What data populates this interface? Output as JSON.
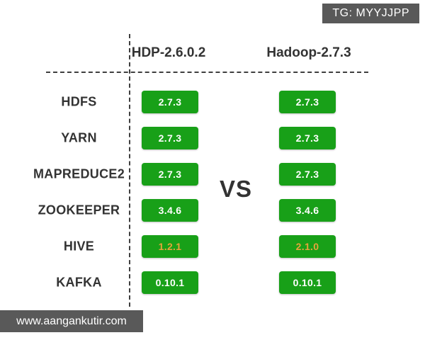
{
  "watermarks": {
    "tg_badge": "TG: MYYJJPP",
    "site": "www.aangankutir.com"
  },
  "header": {
    "left_column": "HDP-2.6.0.2",
    "right_column": "Hadoop-2.7.3",
    "vs": "VS"
  },
  "comparison": {
    "rows": [
      {
        "component": "HDFS",
        "hdp": "2.7.3",
        "hadoop": "2.7.3",
        "highlight": false
      },
      {
        "component": "YARN",
        "hdp": "2.7.3",
        "hadoop": "2.7.3",
        "highlight": false
      },
      {
        "component": "MAPREDUCE2",
        "hdp": "2.7.3",
        "hadoop": "2.7.3",
        "highlight": false
      },
      {
        "component": "ZOOKEEPER",
        "hdp": "3.4.6",
        "hadoop": "3.4.6",
        "highlight": false
      },
      {
        "component": "HIVE",
        "hdp": "1.2.1",
        "hadoop": "2.1.0",
        "highlight": true
      },
      {
        "component": "KAFKA",
        "hdp": "0.10.1",
        "hadoop": "0.10.1",
        "highlight": false
      }
    ]
  },
  "colors": {
    "badge_green": "#18A018",
    "badge_text": "#FFFFFF",
    "badge_text_highlight": "#E7A33B",
    "bar_gray": "#595959",
    "text_dark": "#333333",
    "line": "#3F3F3F"
  }
}
